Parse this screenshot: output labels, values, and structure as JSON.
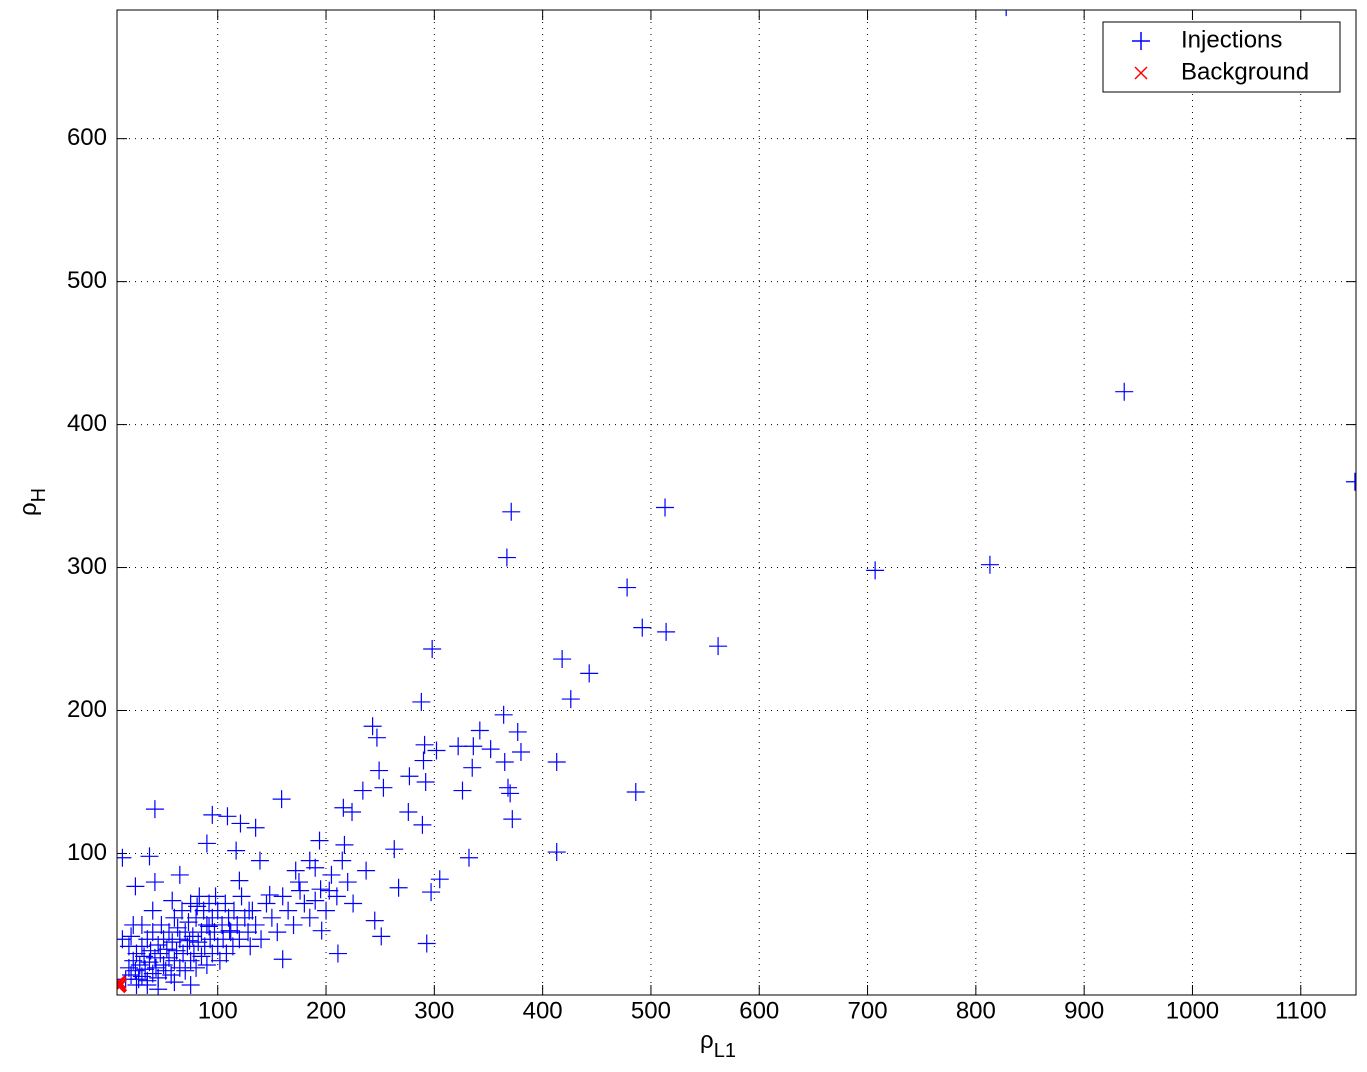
{
  "chart_data": {
    "type": "scatter",
    "xlabel": {
      "text": "ρ",
      "sub": "L1"
    },
    "ylabel": {
      "text": "ρ",
      "sub": "H"
    },
    "xlim": [
      7,
      1151
    ],
    "ylim": [
      1,
      690
    ],
    "xticks": [
      100,
      200,
      300,
      400,
      500,
      600,
      700,
      800,
      900,
      1000,
      1100
    ],
    "yticks": [
      100,
      200,
      300,
      400,
      500,
      600
    ],
    "grid": true,
    "legend": "upper right",
    "series": [
      {
        "name": "Injections",
        "color": "#0000ff",
        "marker": "+",
        "points": [
          [
            828,
            692
          ],
          [
            1150,
            360
          ],
          [
            937,
            423
          ],
          [
            813,
            302
          ],
          [
            707,
            298
          ],
          [
            562,
            245
          ],
          [
            513,
            342
          ],
          [
            514,
            255
          ],
          [
            492,
            258
          ],
          [
            478,
            286
          ],
          [
            486,
            143
          ],
          [
            443,
            226
          ],
          [
            426,
            208
          ],
          [
            418,
            236
          ],
          [
            413,
            164
          ],
          [
            413,
            101
          ],
          [
            371,
            339
          ],
          [
            367,
            307
          ],
          [
            380,
            171
          ],
          [
            377,
            185
          ],
          [
            364,
            197
          ],
          [
            365,
            164
          ],
          [
            368,
            146
          ],
          [
            370,
            142
          ],
          [
            372,
            124
          ],
          [
            342,
            186
          ],
          [
            352,
            173
          ],
          [
            336,
            175
          ],
          [
            322,
            175
          ],
          [
            335,
            160
          ],
          [
            326,
            144
          ],
          [
            332,
            97
          ],
          [
            298,
            243
          ],
          [
            288,
            206
          ],
          [
            291,
            176
          ],
          [
            302,
            172
          ],
          [
            290,
            165
          ],
          [
            292,
            150
          ],
          [
            277,
            154
          ],
          [
            276,
            129
          ],
          [
            289,
            120
          ],
          [
            293,
            37
          ],
          [
            297,
            73
          ],
          [
            305,
            82
          ],
          [
            243,
            189
          ],
          [
            247,
            181
          ],
          [
            249,
            158
          ],
          [
            253,
            146
          ],
          [
            234,
            144
          ],
          [
            237,
            88
          ],
          [
            245,
            53
          ],
          [
            251,
            42
          ],
          [
            263,
            103
          ],
          [
            267,
            76
          ],
          [
            224,
            129
          ],
          [
            216,
            132
          ],
          [
            211,
            30
          ],
          [
            196,
            46
          ],
          [
            194,
            109
          ],
          [
            159,
            138
          ],
          [
            160,
            26
          ],
          [
            95,
            127
          ],
          [
            42,
            131
          ],
          [
            12,
            97
          ],
          [
            37,
            98
          ],
          [
            42,
            80
          ],
          [
            24,
            77
          ],
          [
            109,
            126
          ],
          [
            121,
            121
          ],
          [
            135,
            118
          ],
          [
            117,
            102
          ],
          [
            90,
            107
          ],
          [
            65,
            85
          ],
          [
            58,
            67
          ],
          [
            81,
            63
          ],
          [
            139,
            95
          ],
          [
            172,
            88
          ],
          [
            185,
            95
          ],
          [
            176,
            74
          ],
          [
            148,
            71
          ],
          [
            120,
            81
          ],
          [
            129,
            60
          ],
          [
            190,
            67
          ],
          [
            203,
            74
          ],
          [
            217,
            106
          ],
          [
            111,
            46
          ],
          [
            92,
            49
          ],
          [
            74,
            39
          ],
          [
            15,
            12
          ],
          [
            18,
            20
          ],
          [
            20,
            15
          ],
          [
            22,
            25
          ],
          [
            24,
            18
          ],
          [
            25,
            30
          ],
          [
            27,
            12
          ],
          [
            28,
            22
          ],
          [
            30,
            35
          ],
          [
            30,
            14
          ],
          [
            32,
            28
          ],
          [
            33,
            19
          ],
          [
            35,
            40
          ],
          [
            35,
            11
          ],
          [
            37,
            24
          ],
          [
            38,
            32
          ],
          [
            40,
            16
          ],
          [
            40,
            45
          ],
          [
            42,
            27
          ],
          [
            43,
            20
          ],
          [
            45,
            36
          ],
          [
            45,
            13
          ],
          [
            47,
            30
          ],
          [
            48,
            50
          ],
          [
            50,
            22
          ],
          [
            50,
            40
          ],
          [
            52,
            18
          ],
          [
            53,
            33
          ],
          [
            55,
            45
          ],
          [
            55,
            27
          ],
          [
            57,
            15
          ],
          [
            58,
            38
          ],
          [
            60,
            55
          ],
          [
            60,
            25
          ],
          [
            62,
            32
          ],
          [
            63,
            48
          ],
          [
            65,
            20
          ],
          [
            65,
            40
          ],
          [
            67,
            60
          ],
          [
            68,
            30
          ],
          [
            70,
            45
          ],
          [
            70,
            18
          ],
          [
            72,
            35
          ],
          [
            73,
            52
          ],
          [
            75,
            25
          ],
          [
            75,
            65
          ],
          [
            77,
            42
          ],
          [
            78,
            30
          ],
          [
            80,
            55
          ],
          [
            80,
            20
          ],
          [
            82,
            38
          ],
          [
            83,
            70
          ],
          [
            85,
            45
          ],
          [
            85,
            28
          ],
          [
            87,
            60
          ],
          [
            88,
            35
          ],
          [
            90,
            50
          ],
          [
            90,
            22
          ],
          [
            92,
            65
          ],
          [
            93,
            40
          ],
          [
            95,
            30
          ],
          [
            95,
            55
          ],
          [
            97,
            45
          ],
          [
            98,
            70
          ],
          [
            100,
            35
          ],
          [
            100,
            60
          ],
          [
            102,
            25
          ],
          [
            104,
            50
          ],
          [
            105,
            40
          ],
          [
            107,
            65
          ],
          [
            108,
            30
          ],
          [
            110,
            55
          ],
          [
            112,
            45
          ],
          [
            114,
            35
          ],
          [
            115,
            60
          ],
          [
            118,
            50
          ],
          [
            120,
            40
          ],
          [
            122,
            70
          ],
          [
            125,
            55
          ],
          [
            128,
            45
          ],
          [
            130,
            35
          ],
          [
            132,
            60
          ],
          [
            135,
            50
          ],
          [
            140,
            40
          ],
          [
            145,
            65
          ],
          [
            150,
            55
          ],
          [
            155,
            45
          ],
          [
            160,
            70
          ],
          [
            165,
            60
          ],
          [
            170,
            50
          ],
          [
            175,
            80
          ],
          [
            180,
            65
          ],
          [
            185,
            55
          ],
          [
            190,
            90
          ],
          [
            195,
            75
          ],
          [
            200,
            60
          ],
          [
            205,
            85
          ],
          [
            210,
            70
          ],
          [
            215,
            95
          ],
          [
            220,
            80
          ],
          [
            225,
            65
          ],
          [
            18,
            35
          ],
          [
            12,
            40
          ],
          [
            20,
            42
          ],
          [
            25,
            8
          ],
          [
            35,
            8
          ],
          [
            45,
            5
          ],
          [
            60,
            10
          ],
          [
            75,
            8
          ],
          [
            30,
            50
          ],
          [
            40,
            60
          ],
          [
            22,
            50
          ]
        ]
      },
      {
        "name": "Background",
        "color": "#ff0000",
        "marker": "x",
        "points": [
          [
            8,
            9
          ],
          [
            9,
            10
          ],
          [
            10,
            8
          ],
          [
            9,
            7
          ]
        ]
      }
    ]
  }
}
